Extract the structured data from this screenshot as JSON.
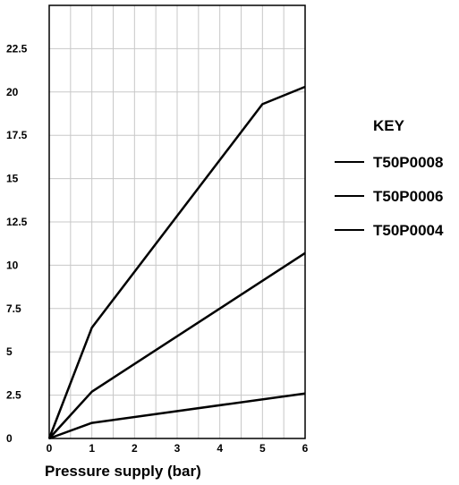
{
  "chart_data": {
    "type": "line",
    "xlabel": "Pressure supply (bar)",
    "ylabel": "",
    "xlim": [
      0,
      6
    ],
    "ylim": [
      0,
      25
    ],
    "x_ticks": [
      "0",
      "1",
      "2",
      "3",
      "4",
      "5",
      "6"
    ],
    "y_ticks": [
      "0",
      "2.5",
      "5",
      "7.5",
      "10",
      "12.5",
      "15",
      "17.5",
      "20",
      "22.5"
    ],
    "grid": true,
    "legend": {
      "title": "KEY",
      "placement": "right",
      "entries": [
        "T50P0008",
        "T50P0006",
        "T50P0004"
      ]
    },
    "series": [
      {
        "name": "T50P0008",
        "x": [
          0,
          1,
          5,
          6
        ],
        "y": [
          0,
          6.4,
          19.3,
          20.3
        ]
      },
      {
        "name": "T50P0006",
        "x": [
          0,
          1,
          6
        ],
        "y": [
          0,
          2.7,
          10.7
        ]
      },
      {
        "name": "T50P0004",
        "x": [
          0,
          1,
          6
        ],
        "y": [
          0,
          0.9,
          2.6
        ]
      }
    ],
    "colors": {
      "line": "#000000",
      "grid": "#c8c8c8",
      "axis": "#000000"
    }
  }
}
